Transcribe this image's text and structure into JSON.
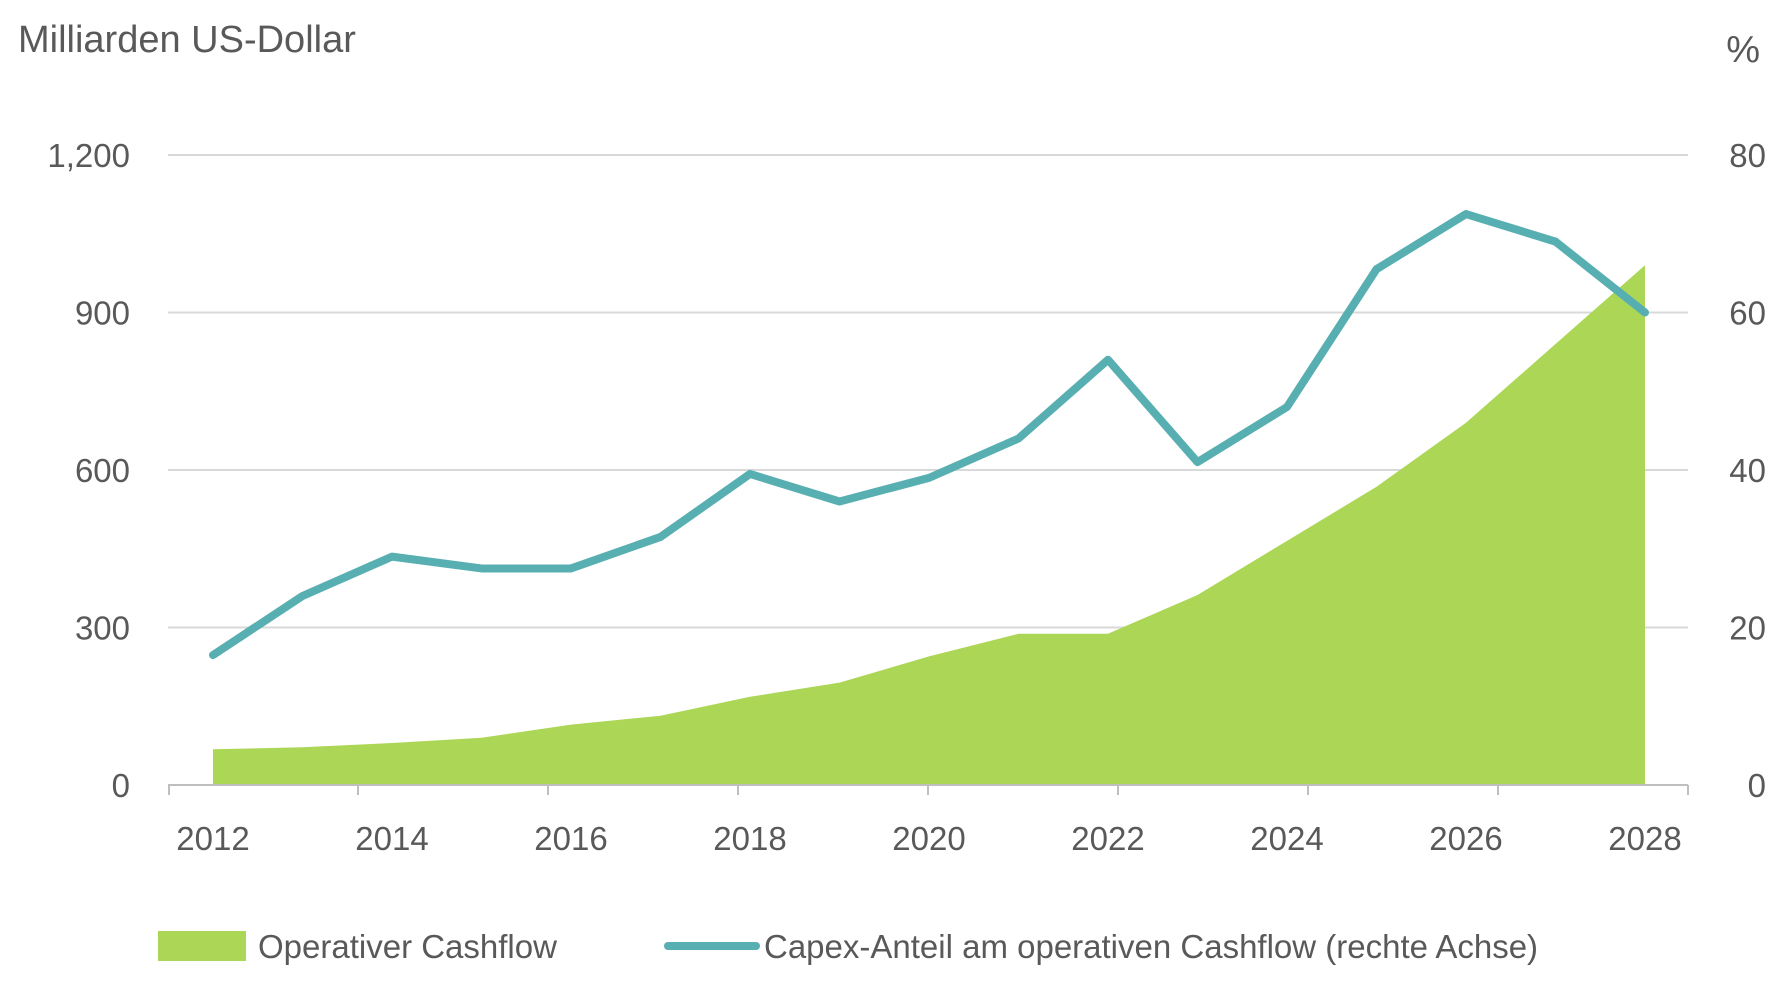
{
  "chart_data": {
    "type": "area",
    "left_axis": {
      "title": "Milliarden US-Dollar",
      "ylim": [
        0,
        1200
      ],
      "ticks": [
        0,
        300,
        600,
        900,
        1200
      ],
      "tick_labels": [
        "0",
        "300",
        "600",
        "900",
        "1,200"
      ]
    },
    "right_axis": {
      "title": "%",
      "ylim": [
        0,
        80
      ],
      "ticks": [
        0,
        20,
        40,
        60,
        80
      ],
      "tick_labels": [
        "0",
        "20",
        "40",
        "60",
        "80"
      ]
    },
    "x": [
      2012,
      2013,
      2014,
      2015,
      2016,
      2017,
      2018,
      2019,
      2020,
      2021,
      2022,
      2023,
      2024,
      2025,
      2026,
      2027,
      2028
    ],
    "x_tick_labels": [
      "2012",
      "2014",
      "2016",
      "2018",
      "2020",
      "2022",
      "2024",
      "2026",
      "2028"
    ],
    "series": [
      {
        "name": "Operativer Cashflow",
        "type": "area",
        "axis": "left",
        "color": "#acd655",
        "values": [
          68,
          72,
          80,
          90,
          115,
          132,
          168,
          195,
          245,
          288,
          288,
          362,
          465,
          568,
          690,
          840,
          990
        ]
      },
      {
        "name": "Capex-Anteil am operativen Cashflow (rechte Achse)",
        "type": "line",
        "axis": "right",
        "color": "#58afb1",
        "values": [
          16.5,
          24,
          29,
          27.5,
          27.5,
          31.5,
          39.5,
          36,
          39,
          44,
          54,
          41,
          48,
          65.5,
          72.5,
          69,
          60
        ]
      }
    ],
    "grid": true,
    "legend_position": "bottom"
  }
}
